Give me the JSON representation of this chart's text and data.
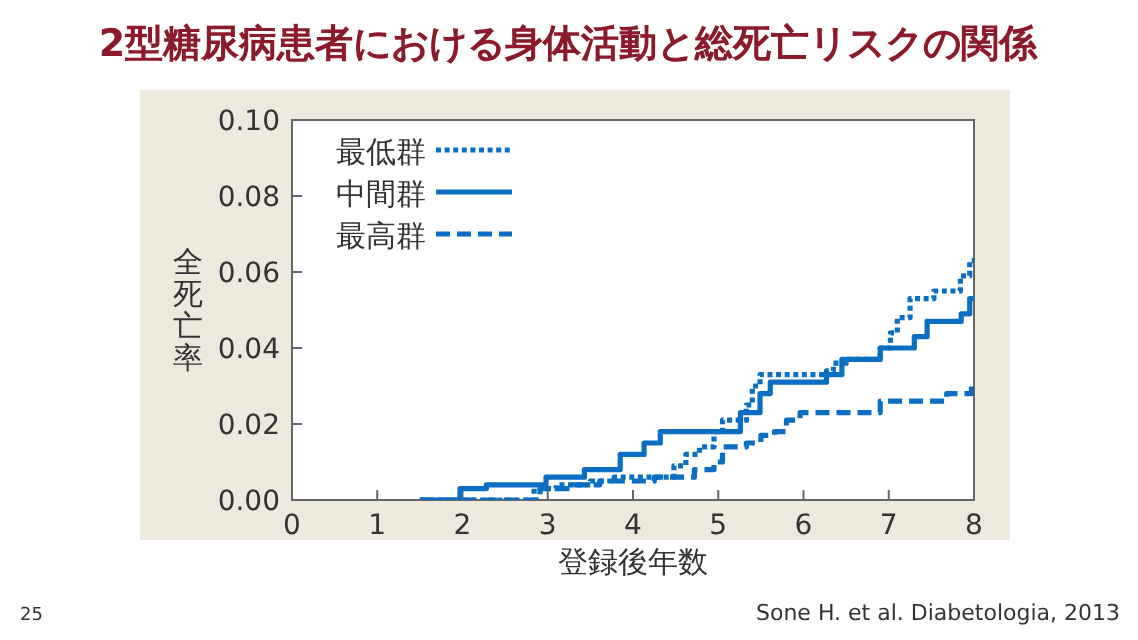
{
  "chart_data": {
    "type": "step",
    "title": "2型糖尿病患者における身体活動と総死亡リスクの関係",
    "xlabel": "登録後年数",
    "ylabel": "全死亡率",
    "xlim": [
      0,
      8
    ],
    "ylim": [
      0,
      0.1
    ],
    "xticks": [
      0,
      1,
      2,
      3,
      4,
      5,
      6,
      7,
      8
    ],
    "yticks": [
      {
        "value": 0,
        "label": "0.00"
      },
      {
        "value": 0.02,
        "label": "0.02"
      },
      {
        "value": 0.04,
        "label": "0.04"
      },
      {
        "value": 0.06,
        "label": "0.06"
      },
      {
        "value": 0.08,
        "label": "0.08"
      },
      {
        "value": 0.1,
        "label": "0.10"
      }
    ],
    "legend": "top left",
    "grid": false,
    "series": [
      {
        "name": "最低群",
        "color": "#0a6fc2",
        "line_style": "dotted",
        "x": [
          1.5,
          2.84,
          3.1,
          3.5,
          3.78,
          4.48,
          4.62,
          4.78,
          4.95,
          5.05,
          5.33,
          5.4,
          5.49,
          6.27,
          6.35,
          6.5,
          6.9,
          7.02,
          7.1,
          7.25,
          7.53,
          7.84,
          7.95,
          8
        ],
        "values": [
          0,
          0.003,
          0.004,
          0.005,
          0.006,
          0.009,
          0.012,
          0.014,
          0.018,
          0.021,
          0.025,
          0.03,
          0.033,
          0.034,
          0.036,
          0.037,
          0.04,
          0.044,
          0.048,
          0.053,
          0.055,
          0.059,
          0.063,
          0.063
        ]
      },
      {
        "name": "中間群",
        "color": "#0a6fc2",
        "line_style": "solid",
        "x": [
          1.5,
          1.97,
          2.28,
          2.98,
          3.43,
          3.85,
          4.13,
          4.32,
          4.98,
          5.26,
          5.49,
          5.61,
          5.84,
          6.27,
          6.45,
          6.9,
          7.3,
          7.45,
          7.85,
          7.95,
          8
        ],
        "values": [
          0,
          0.003,
          0.004,
          0.006,
          0.008,
          0.012,
          0.015,
          0.018,
          0.018,
          0.023,
          0.028,
          0.031,
          0.031,
          0.033,
          0.037,
          0.04,
          0.043,
          0.047,
          0.049,
          0.053,
          0.053
        ]
      },
      {
        "name": "最高群",
        "color": "#0a6fc2",
        "line_style": "dashed",
        "x": [
          1.5,
          2.91,
          3.3,
          3.61,
          4.25,
          4.72,
          4.95,
          5.05,
          5.33,
          5.5,
          5.66,
          5.8,
          5.96,
          6.9,
          7.68,
          7.97,
          8
        ],
        "values": [
          0,
          0.003,
          0.004,
          0.005,
          0.006,
          0.008,
          0.01,
          0.014,
          0.015,
          0.017,
          0.018,
          0.021,
          0.023,
          0.026,
          0.028,
          0.031,
          0.031
        ]
      }
    ],
    "annotations": [
      "25",
      "Sone H. et al. Diabetologia, 2013"
    ]
  }
}
